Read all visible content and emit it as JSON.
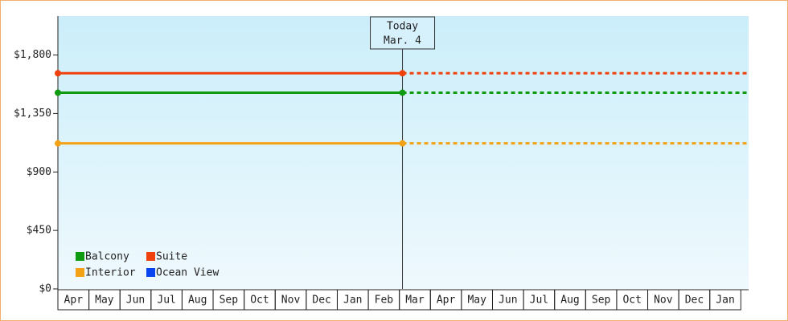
{
  "chart_data": {
    "type": "line",
    "categories": [
      "Apr",
      "May",
      "Jun",
      "Jul",
      "Aug",
      "Sep",
      "Oct",
      "Nov",
      "Dec",
      "Jan",
      "Feb",
      "Mar",
      "Apr",
      "May",
      "Jun",
      "Jul",
      "Aug",
      "Sep",
      "Oct",
      "Nov",
      "Dec",
      "Jan"
    ],
    "x": [
      0,
      11.1
    ],
    "xlim": [
      0,
      22.25
    ],
    "ylim": [
      0,
      2100
    ],
    "yticks": [
      {
        "value": 0,
        "label": "$0"
      },
      {
        "value": 450,
        "label": "$450"
      },
      {
        "value": 900,
        "label": "$900"
      },
      {
        "value": 1350,
        "label": "$1,350"
      },
      {
        "value": 1800,
        "label": "$1,800"
      }
    ],
    "today": {
      "x": 11.1,
      "label": "Today",
      "date": "Mar. 4"
    },
    "series": [
      {
        "name": "Balcony",
        "color": "#109a10",
        "values": [
          1510,
          1510
        ]
      },
      {
        "name": "Suite",
        "color": "#f0400c",
        "values": [
          1660,
          1660
        ]
      },
      {
        "name": "Interior",
        "color": "#f2a214",
        "values": [
          1120,
          1120
        ]
      },
      {
        "name": "Ocean View",
        "color": "#0a44f0",
        "values": [
          null,
          null
        ]
      }
    ],
    "legend": "lower left"
  }
}
